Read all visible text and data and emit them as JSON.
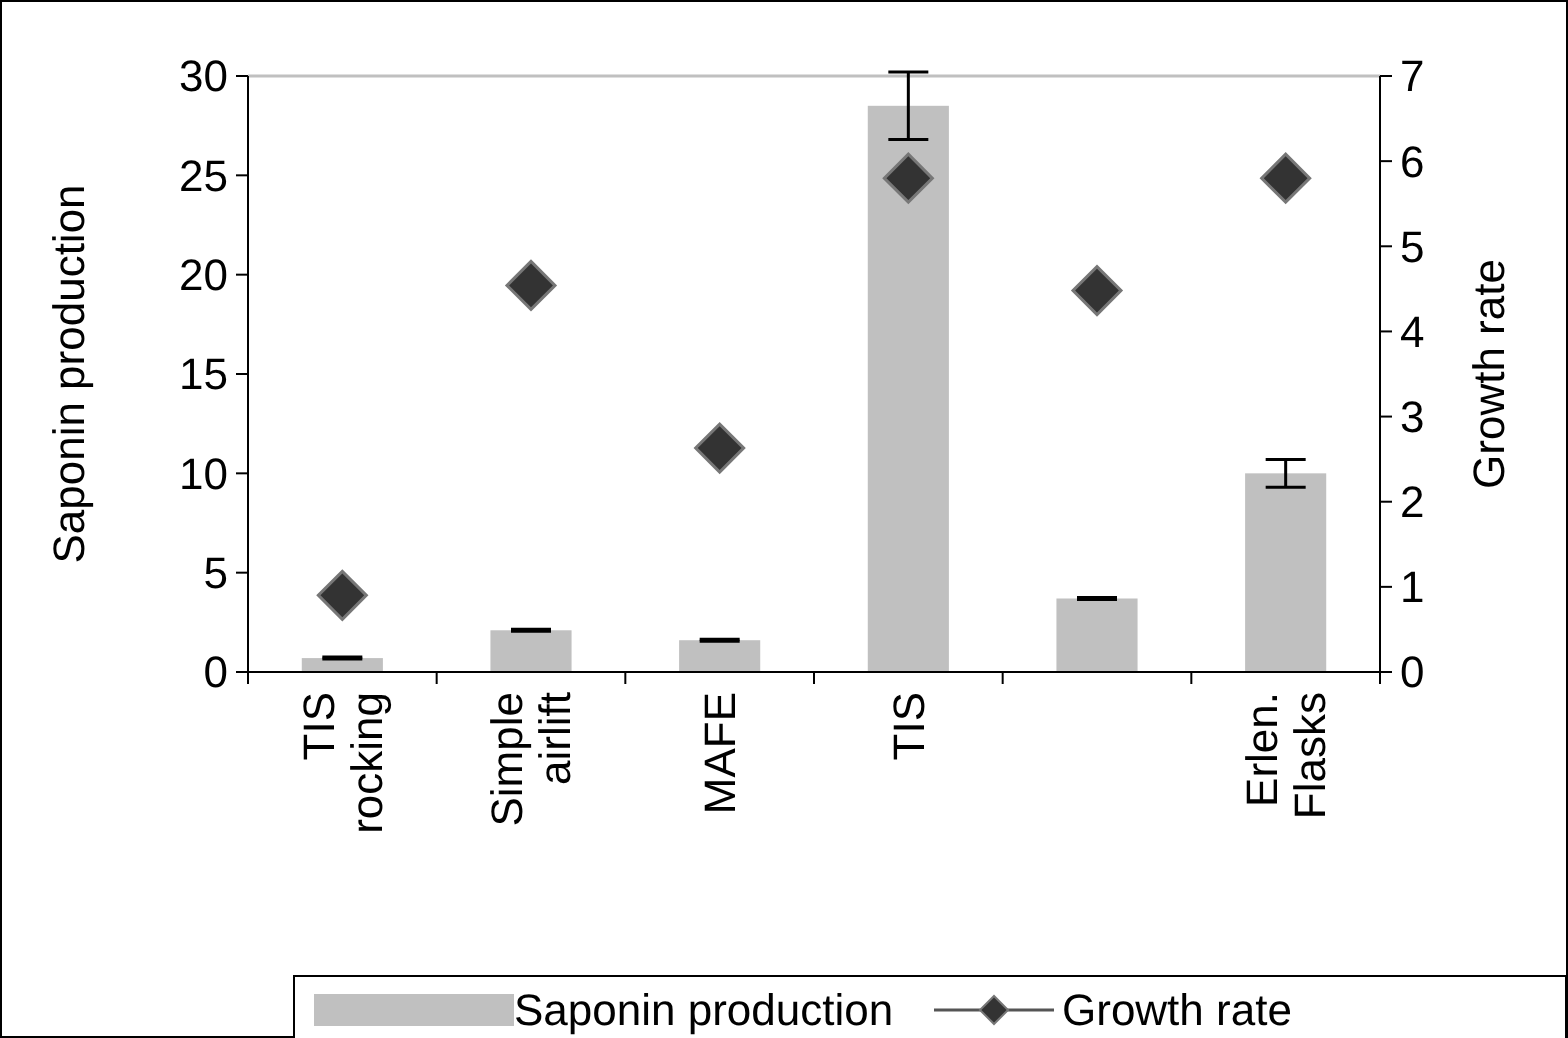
{
  "chart_data": {
    "type": "bar",
    "categories": [
      "TIS rocking",
      "Simple airlift",
      "MAFE",
      "TIS",
      null,
      "Erlen. Flasks"
    ],
    "ylabel": "Saponin production",
    "y2label": "Growth rate",
    "series": [
      {
        "name": "Saponin production",
        "color": "#c0c0c0",
        "values": [
          0.7,
          2.1,
          1.6,
          28.5,
          3.7,
          10.0
        ],
        "errors": [
          0.05,
          0.05,
          0.05,
          1.7,
          0.05,
          0.7
        ]
      },
      {
        "name": "Growth rate",
        "type": "scatter",
        "axis": "y2",
        "color": "#333333",
        "values": [
          0.9,
          4.54,
          2.63,
          5.8,
          4.48,
          5.8
        ]
      }
    ],
    "ylim": [
      0,
      30
    ],
    "yticks": [
      0,
      5,
      10,
      15,
      20,
      25,
      30
    ],
    "y2lim": [
      0,
      7
    ],
    "y2ticks": [
      0,
      1,
      2,
      3,
      4,
      5,
      6,
      7
    ],
    "marker": "diamond",
    "legend": "bottom",
    "grid": false
  }
}
